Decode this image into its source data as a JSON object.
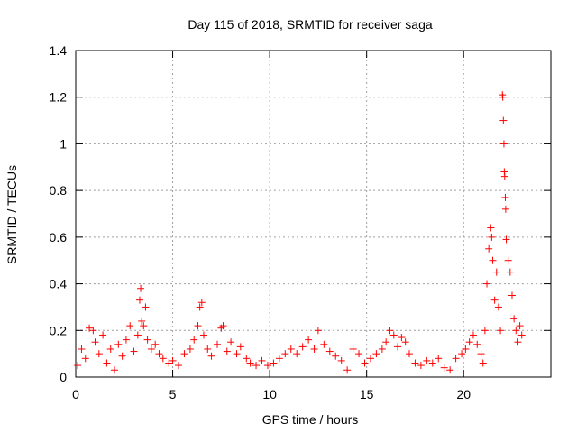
{
  "chart_data": {
    "type": "scatter",
    "title": "Day 115 of 2018, SRMTID for receiver saga",
    "xlabel": "GPS time / hours",
    "ylabel": "SRMTID / TECUs",
    "xlim": [
      0,
      24.5
    ],
    "ylim": [
      0,
      1.4
    ],
    "x_ticks": [
      "0",
      "5",
      "10",
      "15",
      "20"
    ],
    "y_ticks": [
      "0",
      "0.2",
      "0.4",
      "0.6",
      "0.8",
      "1",
      "1.2",
      "1.4"
    ],
    "grid": true,
    "marker": "+",
    "series": [
      {
        "name": "SRMTID",
        "color": "#ff0000",
        "points": [
          [
            0.1,
            0.05
          ],
          [
            0.3,
            0.12
          ],
          [
            0.5,
            0.08
          ],
          [
            0.7,
            0.21
          ],
          [
            0.9,
            0.2
          ],
          [
            1.0,
            0.15
          ],
          [
            1.2,
            0.1
          ],
          [
            1.4,
            0.18
          ],
          [
            1.6,
            0.06
          ],
          [
            1.8,
            0.12
          ],
          [
            2.0,
            0.03
          ],
          [
            2.2,
            0.14
          ],
          [
            2.4,
            0.09
          ],
          [
            2.6,
            0.16
          ],
          [
            2.8,
            0.22
          ],
          [
            3.0,
            0.11
          ],
          [
            3.2,
            0.18
          ],
          [
            3.3,
            0.33
          ],
          [
            3.35,
            0.38
          ],
          [
            3.4,
            0.24
          ],
          [
            3.5,
            0.22
          ],
          [
            3.6,
            0.3
          ],
          [
            3.7,
            0.16
          ],
          [
            3.9,
            0.12
          ],
          [
            4.1,
            0.14
          ],
          [
            4.3,
            0.1
          ],
          [
            4.5,
            0.08
          ],
          [
            4.8,
            0.06
          ],
          [
            5.0,
            0.07
          ],
          [
            5.3,
            0.05
          ],
          [
            5.6,
            0.1
          ],
          [
            5.9,
            0.12
          ],
          [
            6.1,
            0.16
          ],
          [
            6.3,
            0.22
          ],
          [
            6.4,
            0.3
          ],
          [
            6.5,
            0.32
          ],
          [
            6.6,
            0.18
          ],
          [
            6.8,
            0.12
          ],
          [
            7.0,
            0.09
          ],
          [
            7.3,
            0.14
          ],
          [
            7.5,
            0.21
          ],
          [
            7.6,
            0.22
          ],
          [
            7.8,
            0.11
          ],
          [
            8.0,
            0.15
          ],
          [
            8.3,
            0.1
          ],
          [
            8.5,
            0.13
          ],
          [
            8.8,
            0.08
          ],
          [
            9.0,
            0.06
          ],
          [
            9.3,
            0.05
          ],
          [
            9.6,
            0.07
          ],
          [
            9.9,
            0.05
          ],
          [
            10.2,
            0.06
          ],
          [
            10.5,
            0.08
          ],
          [
            10.8,
            0.1
          ],
          [
            11.1,
            0.12
          ],
          [
            11.4,
            0.1
          ],
          [
            11.7,
            0.13
          ],
          [
            12.0,
            0.16
          ],
          [
            12.3,
            0.12
          ],
          [
            12.5,
            0.2
          ],
          [
            12.8,
            0.14
          ],
          [
            13.1,
            0.11
          ],
          [
            13.4,
            0.09
          ],
          [
            13.7,
            0.07
          ],
          [
            14.0,
            0.03
          ],
          [
            14.3,
            0.12
          ],
          [
            14.6,
            0.1
          ],
          [
            14.9,
            0.06
          ],
          [
            15.2,
            0.08
          ],
          [
            15.5,
            0.1
          ],
          [
            15.8,
            0.12
          ],
          [
            16.0,
            0.15
          ],
          [
            16.2,
            0.2
          ],
          [
            16.4,
            0.18
          ],
          [
            16.6,
            0.13
          ],
          [
            16.8,
            0.17
          ],
          [
            17.0,
            0.15
          ],
          [
            17.2,
            0.1
          ],
          [
            17.5,
            0.06
          ],
          [
            17.8,
            0.05
          ],
          [
            18.1,
            0.07
          ],
          [
            18.4,
            0.06
          ],
          [
            18.7,
            0.08
          ],
          [
            19.0,
            0.04
          ],
          [
            19.3,
            0.03
          ],
          [
            19.6,
            0.08
          ],
          [
            19.9,
            0.1
          ],
          [
            20.1,
            0.12
          ],
          [
            20.3,
            0.15
          ],
          [
            20.5,
            0.18
          ],
          [
            20.7,
            0.14
          ],
          [
            20.9,
            0.1
          ],
          [
            21.0,
            0.06
          ],
          [
            21.1,
            0.2
          ],
          [
            21.2,
            0.4
          ],
          [
            21.3,
            0.55
          ],
          [
            21.4,
            0.64
          ],
          [
            21.45,
            0.6
          ],
          [
            21.5,
            0.5
          ],
          [
            21.6,
            0.33
          ],
          [
            21.7,
            0.45
          ],
          [
            21.8,
            0.3
          ],
          [
            21.9,
            0.2
          ],
          [
            22.0,
            1.21
          ],
          [
            22.02,
            1.2
          ],
          [
            22.05,
            1.1
          ],
          [
            22.08,
            1.0
          ],
          [
            22.1,
            0.88
          ],
          [
            22.12,
            0.86
          ],
          [
            22.15,
            0.77
          ],
          [
            22.17,
            0.72
          ],
          [
            22.2,
            0.59
          ],
          [
            22.3,
            0.5
          ],
          [
            22.4,
            0.45
          ],
          [
            22.5,
            0.35
          ],
          [
            22.6,
            0.25
          ],
          [
            22.7,
            0.2
          ],
          [
            22.8,
            0.15
          ],
          [
            22.9,
            0.22
          ],
          [
            23.0,
            0.18
          ]
        ]
      }
    ]
  }
}
